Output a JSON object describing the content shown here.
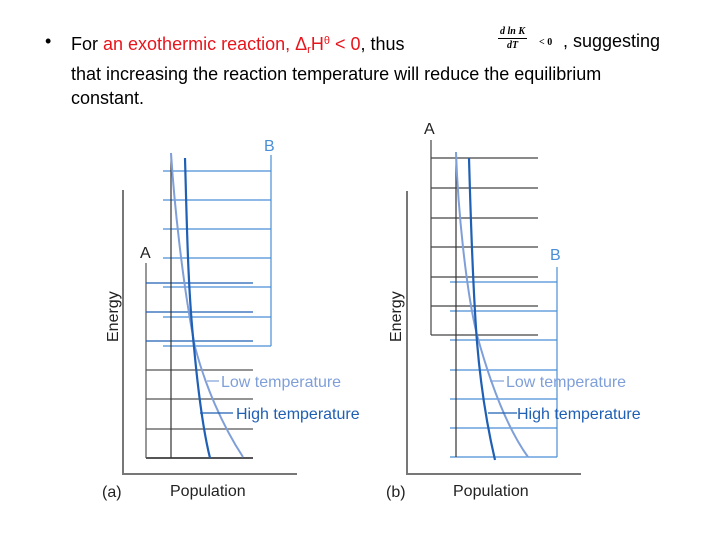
{
  "slide": {
    "bullet": "•",
    "text_prefix": "For ",
    "text_red": "an exothermic reaction, Δ",
    "text_red_sub": "r",
    "text_red_H": "H",
    "text_red_sup": "θ",
    "text_red_end": " < 0",
    "text_after": ", thus",
    "formula_num": "d ln K",
    "formula_den": "dT",
    "formula_rel": "< 0",
    "text_suffix": ", suggesting",
    "line2": "that increasing the reaction temperature will reduce the equilibrium",
    "line3": "constant."
  },
  "figure": {
    "colors": {
      "axis": "#777777",
      "ladder_a": "#555555",
      "ladder_b": "#4a8fd6",
      "low_temp": "#7f9fd9",
      "high_temp": "#1f5fb4"
    },
    "panel_a": {
      "tag": "(a)",
      "xlabel": "Population",
      "ylabel": "Energy",
      "label_a": "A",
      "label_b": "B",
      "low_label": "Low temperature",
      "high_label": "High temperature"
    },
    "panel_b": {
      "tag": "(b)",
      "xlabel": "Population",
      "ylabel": "Energy",
      "label_a": "A",
      "label_b": "B",
      "low_label": "Low temperature",
      "high_label": "High temperature"
    }
  }
}
